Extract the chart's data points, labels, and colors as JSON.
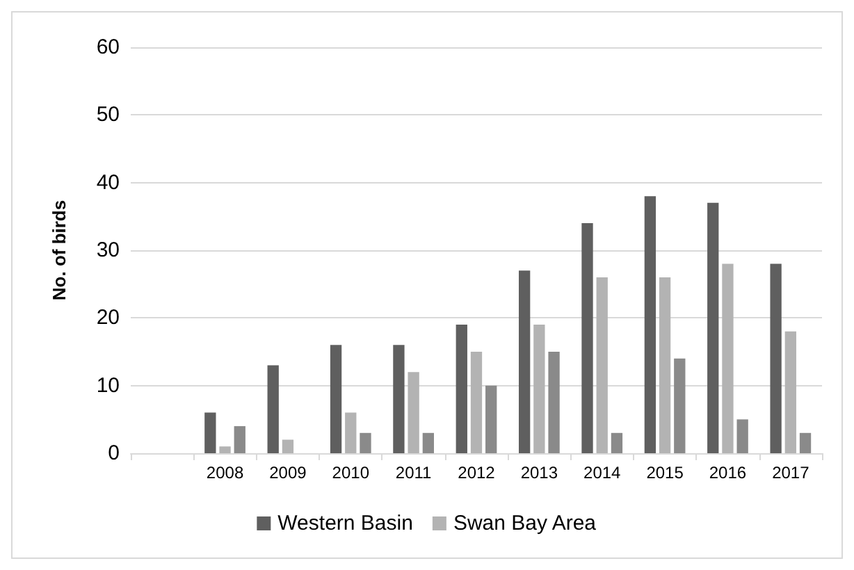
{
  "chart_data": {
    "type": "bar",
    "ylabel": "No. of birds",
    "categories": [
      null,
      "2008",
      "2009",
      "2010",
      "2011",
      "2012",
      "2013",
      "2014",
      "2015",
      "2016",
      "2017"
    ],
    "series": [
      {
        "name": "Western Basin",
        "color": "#5f5f5f",
        "values": [
          null,
          6,
          13,
          16,
          16,
          19,
          27,
          34,
          38,
          37,
          28
        ]
      },
      {
        "name": "Swan Bay Area",
        "color": "#b3b3b3",
        "values": [
          null,
          1,
          2,
          6,
          12,
          15,
          19,
          26,
          26,
          28,
          18
        ]
      },
      {
        "color": "#8a8a8a",
        "values": [
          null,
          4,
          0,
          3,
          3,
          10,
          15,
          3,
          14,
          5,
          3
        ]
      }
    ],
    "ylim": [
      0,
      60
    ],
    "yticks": [
      0,
      10,
      20,
      30,
      40,
      50,
      60
    ],
    "grid": "y",
    "legend": "bottom"
  }
}
